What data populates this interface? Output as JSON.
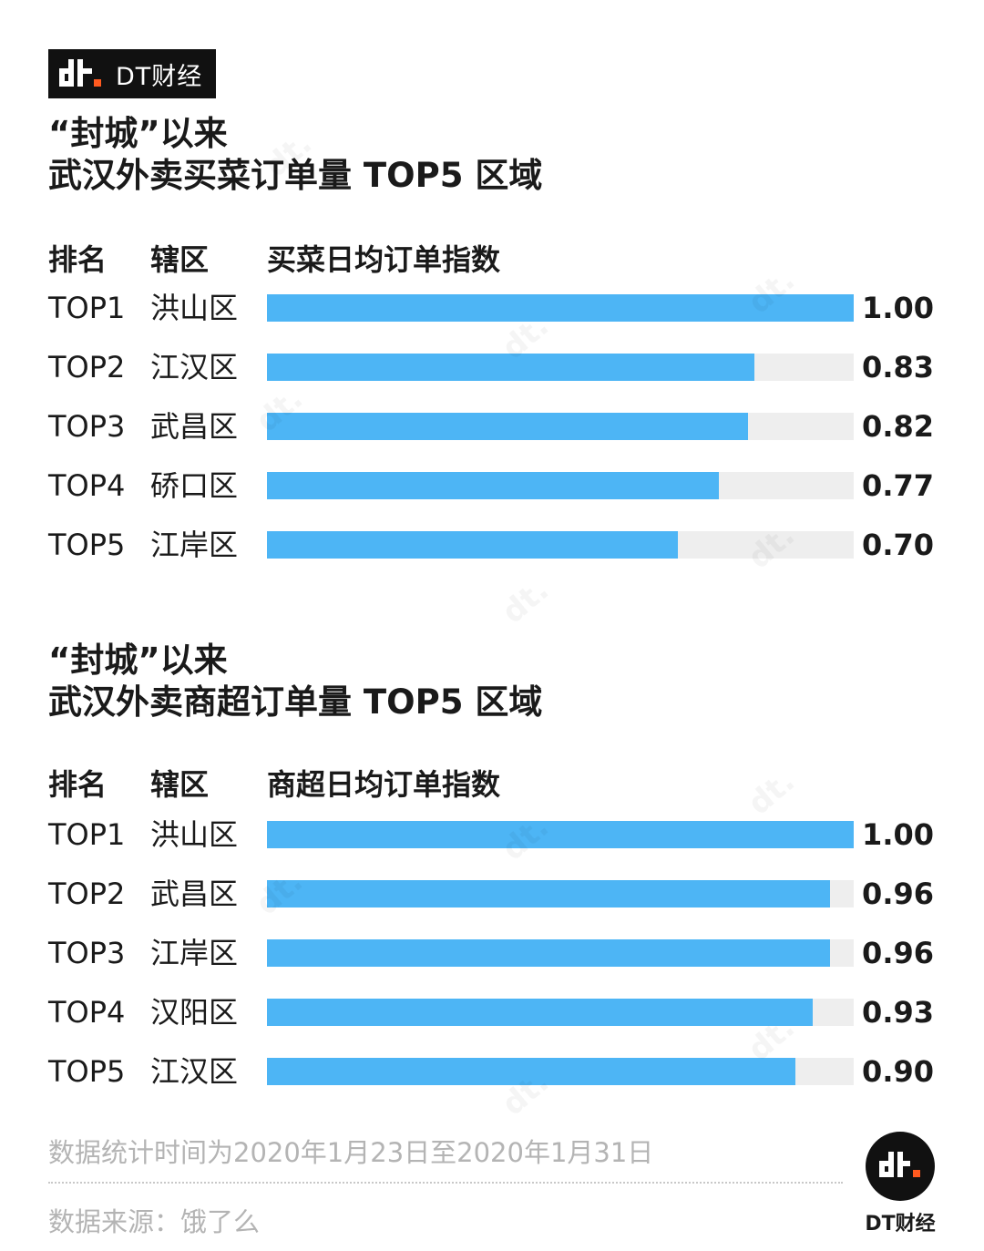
{
  "brand": {
    "name": "DT财经",
    "icon": "dt-logo-icon"
  },
  "sections": [
    {
      "title_line1": "“封城”以来",
      "title_line2": "武汉外卖买菜订单量 TOP5 区域",
      "header": {
        "rank": "排名",
        "district": "辖区",
        "metric": "买菜日均订单指数"
      },
      "rows": [
        {
          "rank": "TOP1",
          "district": "洪山区",
          "value_label": "1.00"
        },
        {
          "rank": "TOP2",
          "district": "江汉区",
          "value_label": "0.83"
        },
        {
          "rank": "TOP3",
          "district": "武昌区",
          "value_label": "0.82"
        },
        {
          "rank": "TOP4",
          "district": "硚口区",
          "value_label": "0.77"
        },
        {
          "rank": "TOP5",
          "district": "江岸区",
          "value_label": "0.70"
        }
      ]
    },
    {
      "title_line1": "“封城”以来",
      "title_line2": "武汉外卖商超订单量 TOP5 区域",
      "header": {
        "rank": "排名",
        "district": "辖区",
        "metric": "商超日均订单指数"
      },
      "rows": [
        {
          "rank": "TOP1",
          "district": "洪山区",
          "value_label": "1.00"
        },
        {
          "rank": "TOP2",
          "district": "武昌区",
          "value_label": "0.96"
        },
        {
          "rank": "TOP3",
          "district": "江岸区",
          "value_label": "0.96"
        },
        {
          "rank": "TOP4",
          "district": "汉阳区",
          "value_label": "0.93"
        },
        {
          "rank": "TOP5",
          "district": "江汉区",
          "value_label": "0.90"
        }
      ]
    }
  ],
  "chart_data": [
    {
      "type": "bar",
      "orientation": "horizontal",
      "categories": [
        "洪山区",
        "江汉区",
        "武昌区",
        "硚口区",
        "江岸区"
      ],
      "values": [
        1.0,
        0.83,
        0.82,
        0.77,
        0.7
      ],
      "xlim": [
        0,
        1
      ]
    },
    {
      "type": "bar",
      "orientation": "horizontal",
      "categories": [
        "洪山区",
        "武昌区",
        "江岸区",
        "汉阳区",
        "江汉区"
      ],
      "values": [
        1.0,
        0.96,
        0.96,
        0.93,
        0.9
      ],
      "xlim": [
        0,
        1
      ]
    }
  ],
  "colors": {
    "bar": "#4db5f5",
    "track": "#eeeeee",
    "text": "#1a1a1a",
    "muted": "#b4b4b4"
  },
  "footer": {
    "note": "数据统计时间为2020年1月23日至2020年1月31日",
    "source": "数据来源：饿了么"
  }
}
